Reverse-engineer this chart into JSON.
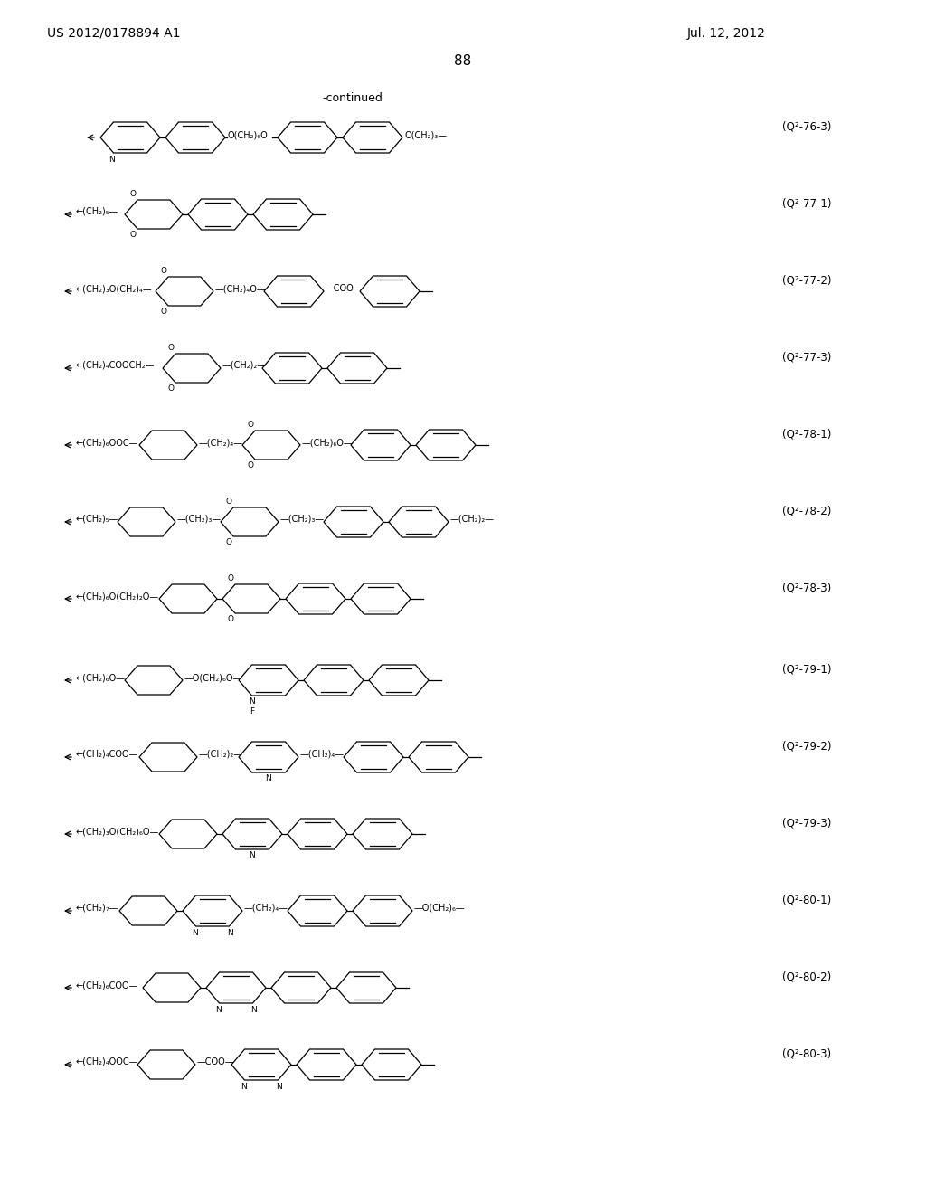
{
  "title_left": "US 2012/0178894 A1",
  "title_right": "Jul. 12, 2012",
  "page_number": "88",
  "continued_label": "-continued",
  "background_color": "#ffffff",
  "text_color": "#000000",
  "compounds": [
    {
      "label": "(Q²-76-3)"
    },
    {
      "label": "(Q²-77-1)"
    },
    {
      "label": "(Q²-77-2)"
    },
    {
      "label": "(Q²-77-3)"
    },
    {
      "label": "(Q²-78-1)"
    },
    {
      "label": "(Q²-78-2)"
    },
    {
      "label": "(Q²-78-3)"
    },
    {
      "label": "(Q²-79-1)"
    },
    {
      "label": "(Q²-79-2)"
    },
    {
      "label": "(Q²-79-3)"
    },
    {
      "label": "(Q²-80-1)"
    },
    {
      "label": "(Q²-80-2)"
    },
    {
      "label": "(Q²-80-3)"
    }
  ]
}
